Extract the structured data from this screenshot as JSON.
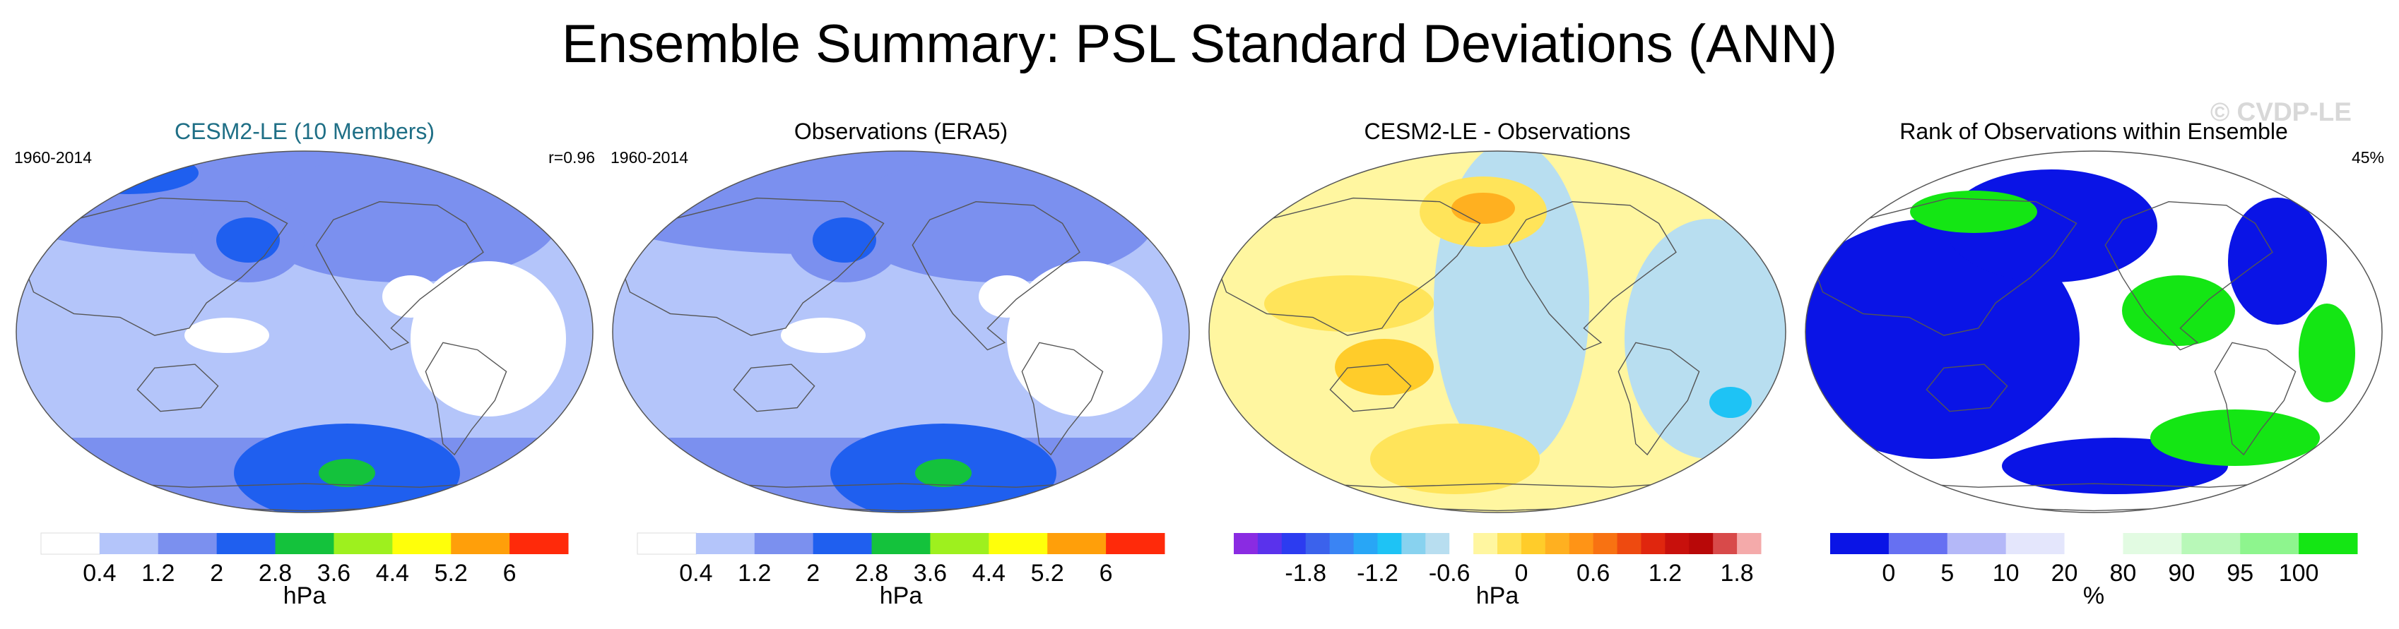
{
  "title": "Ensemble Summary: PSL Standard Deviations (ANN)",
  "watermark": "© CVDP-LE",
  "chart_data": [
    {
      "type": "heatmap",
      "title": "CESM2-LE (10 Members)",
      "title_color": "#1f6f86",
      "left_label": "1960-2014",
      "right_label": "r=0.96",
      "projection": "Robinson (Pacific centered)",
      "colorbar": {
        "unit": "hPa",
        "levels": [
          0.4,
          1.2,
          2,
          2.8,
          3.6,
          4.4,
          5.2,
          6
        ],
        "tick_labels": [
          "0.4",
          "1.2",
          "2",
          "2.8",
          "3.6",
          "4.4",
          "5.2",
          "6"
        ],
        "colors": [
          "#ffffff",
          "#b4c5fa",
          "#7b90ef",
          "#1f5fef",
          "#14c23c",
          "#9ef01e",
          "#ffff0a",
          "#ff9f0a",
          "#ff2a0a"
        ]
      }
    },
    {
      "type": "heatmap",
      "title": "Observations (ERA5)",
      "title_color": "#000000",
      "left_label": "1960-2014",
      "right_label": "",
      "projection": "Robinson (Pacific centered)",
      "colorbar": {
        "unit": "hPa",
        "levels": [
          0.4,
          1.2,
          2,
          2.8,
          3.6,
          4.4,
          5.2,
          6
        ],
        "tick_labels": [
          "0.4",
          "1.2",
          "2",
          "2.8",
          "3.6",
          "4.4",
          "5.2",
          "6"
        ],
        "colors": [
          "#ffffff",
          "#b4c5fa",
          "#7b90ef",
          "#1f5fef",
          "#14c23c",
          "#9ef01e",
          "#ffff0a",
          "#ff9f0a",
          "#ff2a0a"
        ]
      }
    },
    {
      "type": "heatmap",
      "title": "CESM2-LE - Observations",
      "title_color": "#000000",
      "left_label": "",
      "right_label": "",
      "projection": "Robinson (Pacific centered)",
      "colorbar": {
        "unit": "hPa",
        "levels": [
          -1.8,
          -1.2,
          -0.6,
          0,
          0.6,
          1.2,
          1.8
        ],
        "tick_labels": [
          "-1.8",
          "-1.2",
          "-0.6",
          "0",
          "0.6",
          "1.2",
          "1.8"
        ],
        "colors": [
          "#8a2be2",
          "#5a32ec",
          "#2c3cf0",
          "#3b62ec",
          "#3a84f4",
          "#28a6f6",
          "#1ec3f5",
          "#88d2ef",
          "#b8def0",
          "#ffffff",
          "#fff6a0",
          "#ffe45a",
          "#ffcc2a",
          "#ffb020",
          "#ff9416",
          "#f87212",
          "#ee4a10",
          "#e0260e",
          "#c8100c",
          "#b80808",
          "#d84a4a",
          "#f4aaaa"
        ]
      }
    },
    {
      "type": "heatmap",
      "title": "Rank of Observations within Ensemble",
      "title_color": "#000000",
      "left_label": "",
      "right_label": "45%",
      "projection": "Robinson (Pacific centered)",
      "colorbar": {
        "unit": "%",
        "levels": [
          0,
          5,
          10,
          20,
          80,
          90,
          95,
          100
        ],
        "tick_labels": [
          "0",
          "5",
          "10",
          "20",
          "80",
          "90",
          "95",
          "100"
        ],
        "colors": [
          "#0a14e6",
          "#6670f2",
          "#b4b8f8",
          "#e4e6fc",
          "#ffffff",
          "#e2fbe2",
          "#b8f8b8",
          "#8ef58e",
          "#14e614"
        ]
      }
    }
  ]
}
